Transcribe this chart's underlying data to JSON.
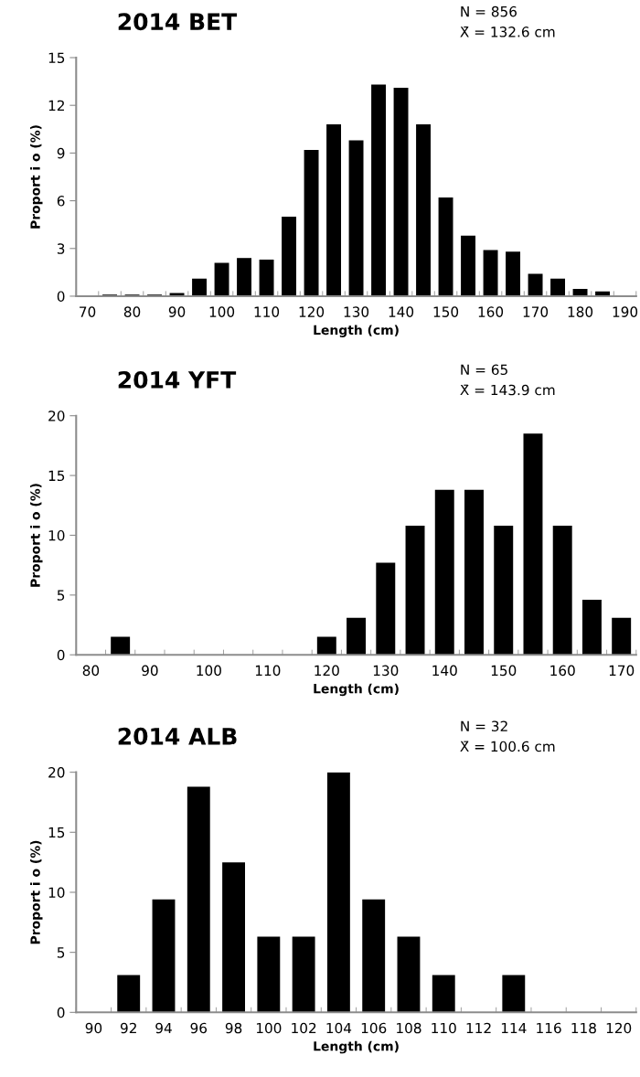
{
  "chart_data": [
    {
      "type": "bar",
      "title": "2014 BET",
      "xlabel": "Length (cm)",
      "ylabel": "Proport i o (%)",
      "annotations": [
        "N = 856",
        "X̄ = 132.6 cm"
      ],
      "color": "#000000",
      "categories": [
        "70",
        null,
        "80",
        null,
        "90",
        null,
        "100",
        null,
        "110",
        null,
        "120",
        null,
        "130",
        null,
        "140",
        null,
        "150",
        null,
        "160",
        null,
        "170",
        null,
        "180",
        null,
        "190"
      ],
      "values": [
        0,
        0.1,
        0.1,
        0.1,
        0.2,
        1.1,
        2.1,
        2.4,
        2.3,
        5.0,
        9.2,
        10.8,
        9.8,
        13.3,
        13.1,
        10.8,
        6.2,
        3.8,
        2.9,
        2.8,
        1.4,
        1.1,
        0.45,
        0.3,
        0
      ],
      "ylim": [
        0,
        15
      ],
      "yticks": [
        0,
        3,
        6,
        9,
        12,
        15
      ],
      "grid": false,
      "legend": false
    },
    {
      "type": "bar",
      "title": "2014 YFT",
      "xlabel": "Length (cm)",
      "ylabel": "Proport i o (%)",
      "annotations": [
        "N = 65",
        "X̄ = 143.9 cm"
      ],
      "color": "#000000",
      "categories": [
        "80",
        null,
        "90",
        null,
        "100",
        null,
        "110",
        null,
        "120",
        null,
        "130",
        null,
        "140",
        null,
        "150",
        null,
        "160",
        null,
        "170"
      ],
      "values": [
        0,
        1.5,
        0,
        0,
        0,
        0,
        0,
        0,
        1.5,
        3.1,
        7.7,
        10.8,
        13.8,
        13.8,
        10.8,
        18.5,
        10.8,
        4.6,
        3.1
      ],
      "ylim": [
        0,
        20
      ],
      "yticks": [
        0,
        5,
        10,
        15,
        20
      ],
      "grid": false,
      "legend": false
    },
    {
      "type": "bar",
      "title": "2014 ALB",
      "xlabel": "Length (cm)",
      "ylabel": "Proport i o (%)",
      "annotations": [
        "N = 32",
        "X̄ = 100.6 cm"
      ],
      "color": "#000000",
      "categories": [
        "90",
        "92",
        "94",
        "96",
        "98",
        "100",
        "102",
        "104",
        "106",
        "108",
        "110",
        "112",
        "114",
        "116",
        "118",
        "120"
      ],
      "values": [
        0,
        3.1,
        9.4,
        18.8,
        12.5,
        6.3,
        6.3,
        20,
        9.4,
        6.3,
        3.1,
        0,
        3.1,
        0,
        0,
        0
      ],
      "ylim": [
        0,
        20
      ],
      "yticks": [
        0,
        5,
        10,
        15,
        20
      ],
      "grid": false,
      "legend": false
    }
  ]
}
